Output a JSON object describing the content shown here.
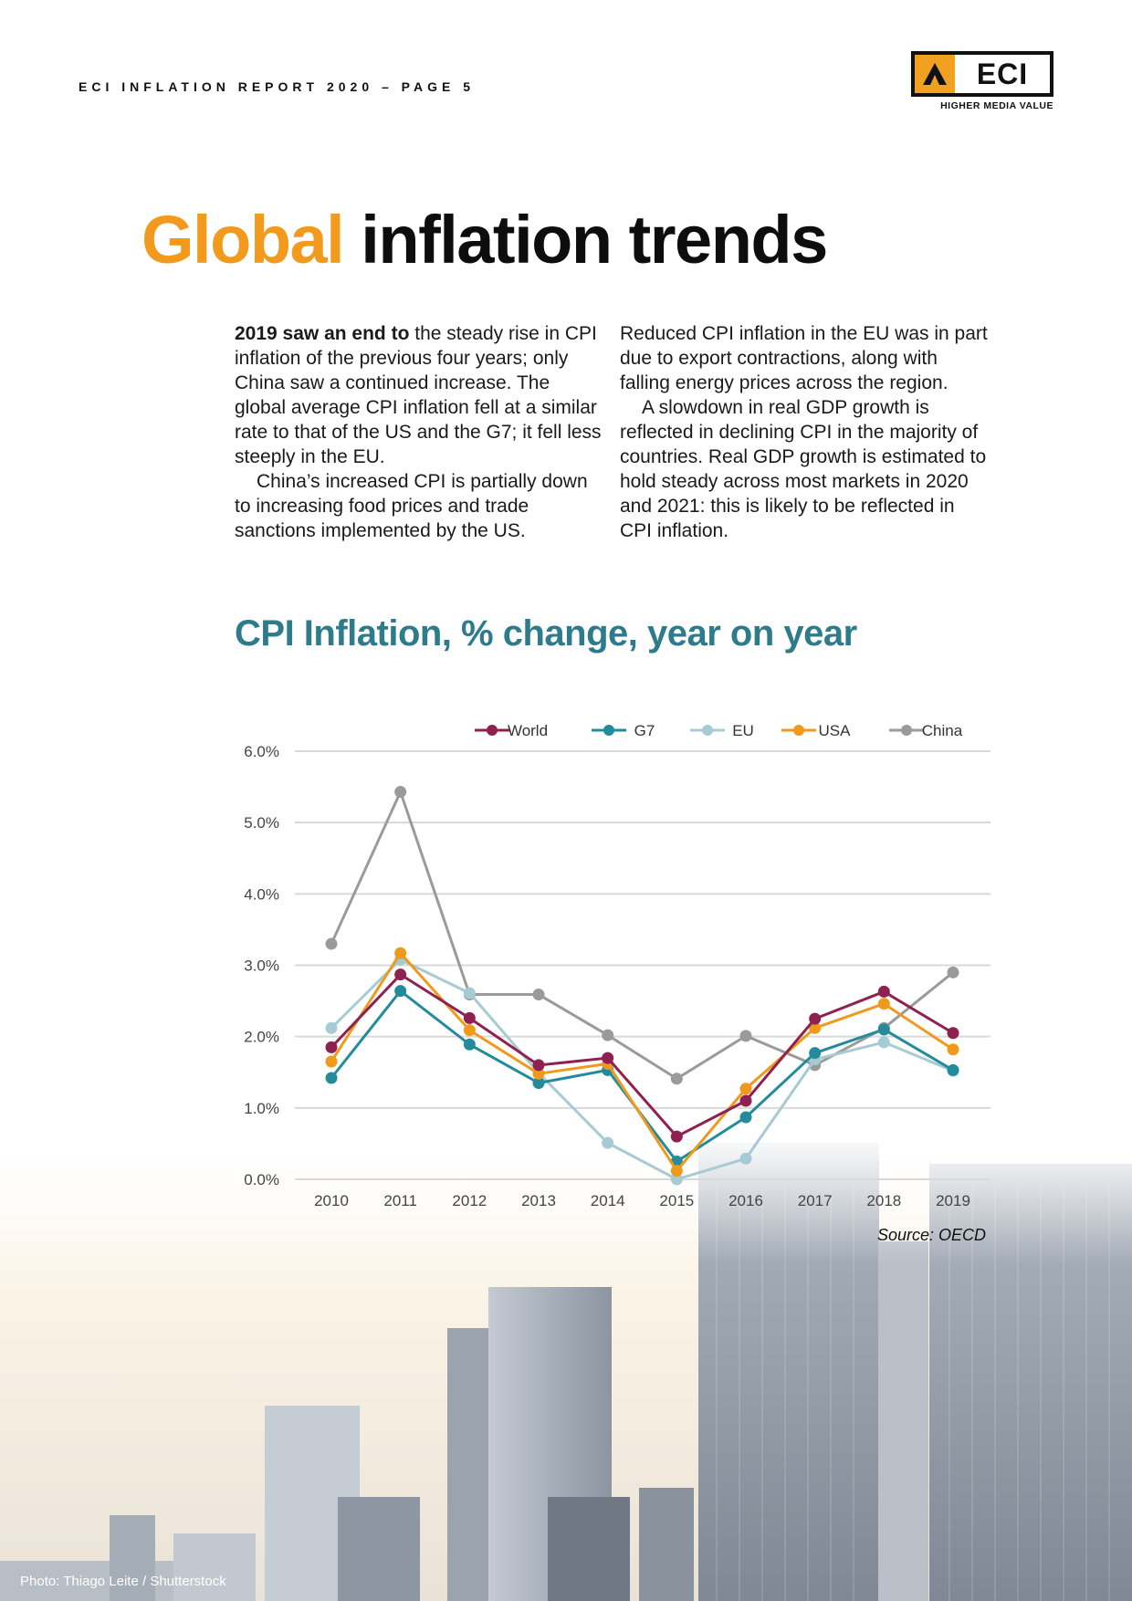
{
  "header": {
    "report_label": "ECI INFLATION REPORT 2020 – PAGE 5",
    "logo_text": "ECI",
    "logo_tagline": "HIGHER MEDIA VALUE"
  },
  "title": {
    "accent": "Global",
    "rest": " inflation trends"
  },
  "body": {
    "left_col": {
      "p1_lead": "2019 saw an end to",
      "p1_text": " the steady rise in CPI inflation of the previous four years; only China saw a continued increase. The global average CPI inflation fell at a similar rate to that of the US and the G7; it fell less steeply in the EU.",
      "p2_text": "China’s increased CPI is partially down to increasing food prices and trade sanctions implemented by the US."
    },
    "right_col": {
      "p1_text": "Reduced CPI inflation in the EU was in part due to export contractions, along with falling energy prices across the region.",
      "p2_text": "A slowdown in real GDP growth is reflected in declining CPI in the majority of countries. Real GDP growth is estimated to hold steady across most markets in 2020 and 2021: this is likely to be reflected in CPI inflation."
    }
  },
  "chart_data": {
    "type": "line",
    "title": "CPI Inflation, % change, year on year",
    "xlabel": "",
    "ylabel": "",
    "x": [
      "2010",
      "2011",
      "2012",
      "2013",
      "2014",
      "2015",
      "2016",
      "2017",
      "2018",
      "2019"
    ],
    "ylim": [
      0,
      6
    ],
    "yticks": [
      0,
      1,
      2,
      3,
      4,
      5,
      6
    ],
    "ytick_labels": [
      "0.0%",
      "1.0%",
      "2.0%",
      "3.0%",
      "4.0%",
      "5.0%",
      "6.0%"
    ],
    "grid": true,
    "legend_position": "top-right",
    "series": [
      {
        "name": "World",
        "color": "#8e2150",
        "values": [
          1.85,
          2.87,
          2.26,
          1.6,
          1.7,
          0.6,
          1.1,
          2.25,
          2.63,
          2.05
        ]
      },
      {
        "name": "G7",
        "color": "#238b9b",
        "values": [
          1.42,
          2.64,
          1.89,
          1.35,
          1.53,
          0.25,
          0.87,
          1.77,
          2.1,
          1.53
        ]
      },
      {
        "name": "EU",
        "color": "#a6cbd3",
        "values": [
          2.12,
          3.08,
          2.61,
          1.49,
          0.51,
          0.0,
          0.29,
          1.68,
          1.92,
          1.52
        ]
      },
      {
        "name": "USA",
        "color": "#ef9a1d",
        "values": [
          1.65,
          3.17,
          2.09,
          1.48,
          1.62,
          0.12,
          1.27,
          2.12,
          2.46,
          1.82
        ]
      },
      {
        "name": "China",
        "color": "#9a9a9a",
        "values": [
          3.3,
          5.43,
          2.59,
          2.59,
          2.02,
          1.41,
          2.01,
          1.6,
          2.12,
          2.9
        ]
      }
    ]
  },
  "source": "Source: OECD",
  "photo_credit": "Photo: Thiago Leite / Shutterstock"
}
